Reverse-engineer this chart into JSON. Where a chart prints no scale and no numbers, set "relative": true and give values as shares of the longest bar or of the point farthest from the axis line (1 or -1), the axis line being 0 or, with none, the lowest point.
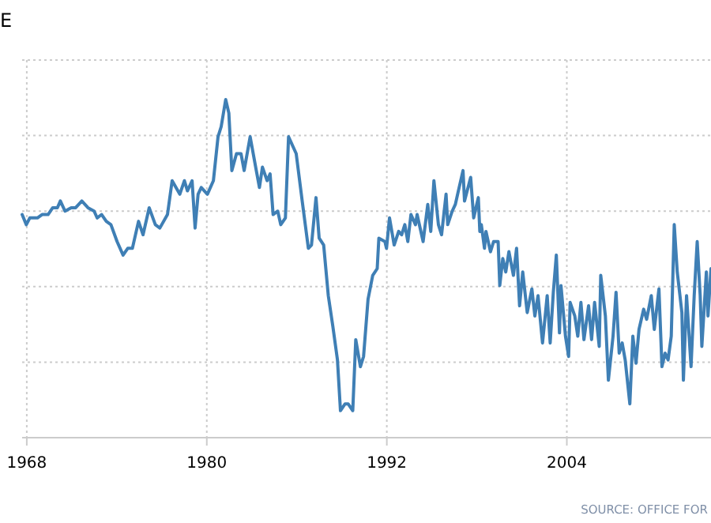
{
  "chart_data": {
    "type": "line",
    "title": "E",
    "relative": true,
    "grid": true,
    "xlim": [
      1967.69,
      2013.61
    ],
    "xticks": [
      1968,
      1980,
      1992,
      2004
    ],
    "annotations": [
      "SOURCE: OFFICE FOR"
    ],
    "series": [
      {
        "color": "#3f7fb5",
        "x": [
          1967.69,
          1967.97,
          1968.2,
          1968.71,
          1969.02,
          1969.42,
          1969.73,
          1970.04,
          1970.24,
          1970.55,
          1970.96,
          1971.26,
          1971.67,
          1972.08,
          1972.49,
          1972.69,
          1972.99,
          1973.3,
          1973.61,
          1974.02,
          1974.42,
          1974.73,
          1975.04,
          1975.45,
          1975.75,
          1976.16,
          1976.57,
          1976.87,
          1977.38,
          1977.69,
          1978.2,
          1978.51,
          1978.71,
          1979.02,
          1979.22,
          1979.42,
          1979.63,
          1980.04,
          1980.44,
          1980.75,
          1980.96,
          1981.26,
          1981.47,
          1981.67,
          1981.98,
          1982.28,
          1982.49,
          1982.89,
          1983.3,
          1983.51,
          1983.71,
          1984.02,
          1984.22,
          1984.42,
          1984.73,
          1984.93,
          1985.24,
          1985.45,
          1985.96,
          1986.36,
          1986.77,
          1986.98,
          1987.28,
          1987.49,
          1987.79,
          1988.1,
          1988.4,
          1988.71,
          1988.91,
          1989.22,
          1989.42,
          1989.73,
          1989.93,
          1990.24,
          1990.45,
          1990.75,
          1991.06,
          1991.36,
          1991.47,
          1991.87,
          1991.98,
          1992.18,
          1992.49,
          1992.79,
          1992.99,
          1993.2,
          1993.4,
          1993.61,
          1993.91,
          1994.02,
          1994.42,
          1994.73,
          1994.93,
          1995.14,
          1995.44,
          1995.65,
          1995.95,
          1996.06,
          1996.36,
          1996.57,
          1996.77,
          1997.08,
          1997.18,
          1997.59,
          1997.79,
          1998.1,
          1998.2,
          1998.3,
          1998.51,
          1998.61,
          1998.91,
          1999.12,
          1999.42,
          1999.53,
          1999.73,
          1999.93,
          2000.14,
          2000.44,
          2000.65,
          2000.85,
          2001.06,
          2001.36,
          2001.67,
          2001.87,
          2002.08,
          2002.38,
          2002.69,
          2002.89,
          2003.1,
          2003.3,
          2003.51,
          2003.61,
          2003.91,
          2004.12,
          2004.22,
          2004.53,
          2004.73,
          2004.94,
          2005.14,
          2005.45,
          2005.65,
          2005.85,
          2006.16,
          2006.26,
          2006.57,
          2006.77,
          2007.08,
          2007.28,
          2007.49,
          2007.69,
          2007.89,
          2008.2,
          2008.4,
          2008.61,
          2008.81,
          2009.12,
          2009.32,
          2009.63,
          2009.83,
          2010.14,
          2010.34,
          2010.55,
          2010.75,
          2010.96,
          2011.16,
          2011.36,
          2011.67,
          2011.77,
          2011.98,
          2012.28,
          2012.49,
          2012.69,
          2012.89,
          2013.0,
          2013.3,
          2013.41,
          2013.61
        ],
        "values": [
          0.66,
          0.63,
          0.65,
          0.65,
          0.66,
          0.66,
          0.68,
          0.68,
          0.7,
          0.67,
          0.68,
          0.68,
          0.7,
          0.68,
          0.67,
          0.65,
          0.66,
          0.64,
          0.63,
          0.58,
          0.54,
          0.56,
          0.56,
          0.64,
          0.6,
          0.68,
          0.63,
          0.62,
          0.66,
          0.76,
          0.72,
          0.76,
          0.73,
          0.76,
          0.62,
          0.72,
          0.74,
          0.72,
          0.76,
          0.89,
          0.92,
          1.0,
          0.96,
          0.79,
          0.84,
          0.84,
          0.79,
          0.89,
          0.79,
          0.74,
          0.8,
          0.76,
          0.78,
          0.66,
          0.67,
          0.63,
          0.65,
          0.89,
          0.84,
          0.7,
          0.56,
          0.57,
          0.71,
          0.59,
          0.57,
          0.42,
          0.33,
          0.23,
          0.08,
          0.1,
          0.1,
          0.08,
          0.29,
          0.21,
          0.24,
          0.41,
          0.48,
          0.5,
          0.59,
          0.58,
          0.56,
          0.65,
          0.57,
          0.61,
          0.6,
          0.63,
          0.58,
          0.66,
          0.63,
          0.66,
          0.58,
          0.69,
          0.61,
          0.76,
          0.63,
          0.6,
          0.72,
          0.63,
          0.67,
          0.69,
          0.73,
          0.79,
          0.7,
          0.77,
          0.65,
          0.71,
          0.61,
          0.63,
          0.56,
          0.61,
          0.55,
          0.58,
          0.58,
          0.45,
          0.53,
          0.49,
          0.55,
          0.48,
          0.56,
          0.39,
          0.49,
          0.37,
          0.44,
          0.36,
          0.42,
          0.28,
          0.42,
          0.28,
          0.43,
          0.54,
          0.31,
          0.45,
          0.3,
          0.24,
          0.4,
          0.36,
          0.3,
          0.4,
          0.29,
          0.39,
          0.29,
          0.4,
          0.27,
          0.48,
          0.36,
          0.17,
          0.3,
          0.43,
          0.25,
          0.28,
          0.23,
          0.1,
          0.3,
          0.22,
          0.32,
          0.38,
          0.35,
          0.42,
          0.32,
          0.44,
          0.21,
          0.25,
          0.23,
          0.3,
          0.63,
          0.49,
          0.37,
          0.17,
          0.42,
          0.21,
          0.42,
          0.58,
          0.42,
          0.27,
          0.49,
          0.36,
          0.5
        ]
      }
    ]
  }
}
